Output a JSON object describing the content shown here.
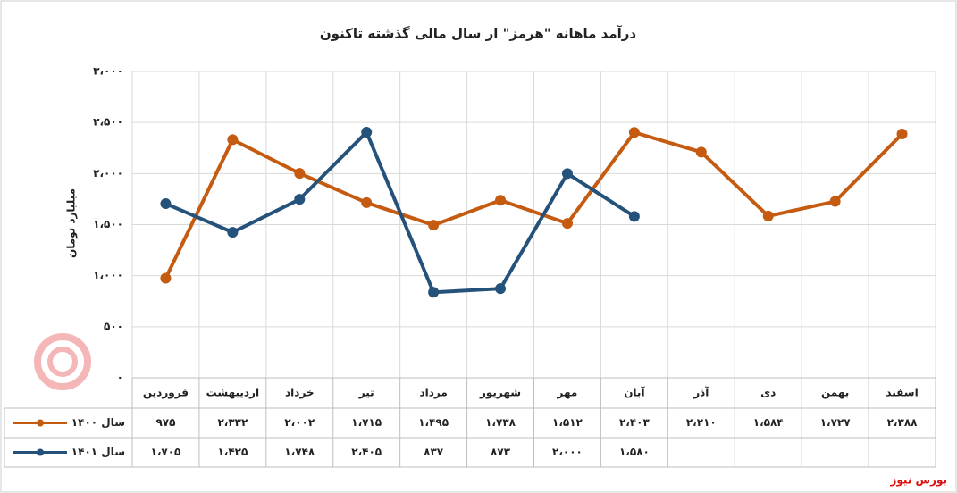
{
  "chart_data": {
    "type": "line",
    "title": "درآمد ماهانه \"هرمز\" از سال مالی گذشته تاکنون",
    "y_label": "میلیارد تومان",
    "categories": [
      "فروردین",
      "اردیبهشت",
      "خرداد",
      "تیر",
      "مرداد",
      "شهریور",
      "مهر",
      "آبان",
      "آذر",
      "دی",
      "بهمن",
      "اسفند"
    ],
    "series": [
      {
        "name": "سال ۱۴۰۰",
        "color": "#c55a11",
        "values": [
          975,
          2332,
          2002,
          1715,
          1495,
          1738,
          1512,
          2403,
          2210,
          1584,
          1727,
          2388
        ],
        "value_labels": [
          "۹۷۵",
          "۲،۳۳۲",
          "۲،۰۰۲",
          "۱،۷۱۵",
          "۱،۴۹۵",
          "۱،۷۳۸",
          "۱،۵۱۲",
          "۲،۴۰۳",
          "۲،۲۱۰",
          "۱،۵۸۴",
          "۱،۷۲۷",
          "۲،۳۸۸"
        ]
      },
      {
        "name": "سال ۱۴۰۱",
        "color": "#24527a",
        "values": [
          1705,
          1425,
          1748,
          2405,
          837,
          873,
          2000,
          1580,
          null,
          null,
          null,
          null
        ],
        "value_labels": [
          "۱،۷۰۵",
          "۱،۴۲۵",
          "۱،۷۴۸",
          "۲،۴۰۵",
          "۸۳۷",
          "۸۷۳",
          "۲،۰۰۰",
          "۱،۵۸۰",
          null,
          null,
          null,
          null
        ]
      }
    ],
    "ylim": [
      0,
      3000
    ],
    "yticks": [
      {
        "value": 0,
        "label": "۰"
      },
      {
        "value": 500,
        "label": "۵۰۰"
      },
      {
        "value": 1000,
        "label": "۱،۰۰۰"
      },
      {
        "value": 1500,
        "label": "۱،۵۰۰"
      },
      {
        "value": 2000,
        "label": "۲،۰۰۰"
      },
      {
        "value": 2500,
        "label": "۲،۵۰۰"
      },
      {
        "value": 3000,
        "label": "۳،۰۰۰"
      }
    ],
    "grid": true,
    "source": "بورس نیوز"
  }
}
